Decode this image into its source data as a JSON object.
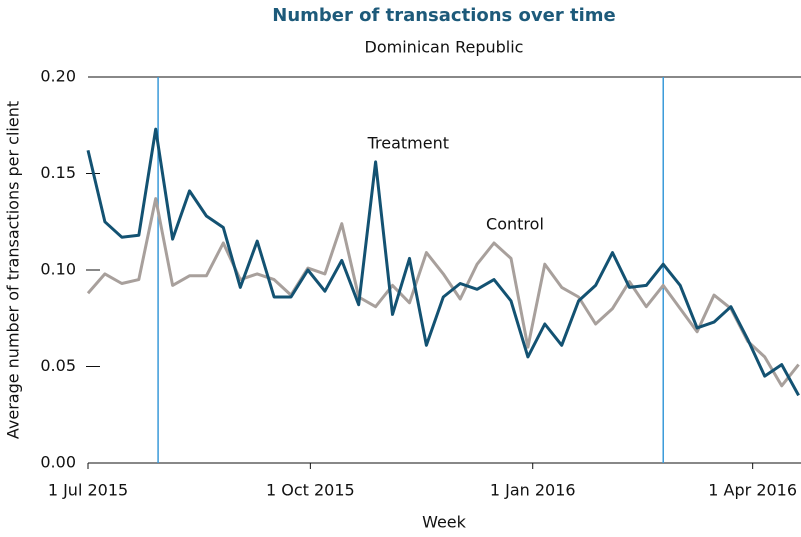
{
  "chart_data": {
    "type": "line",
    "title": "Number of transactions over time",
    "subtitle": "Dominican Republic",
    "x_label": "Week",
    "y_label": "Average number of transactions per client",
    "x": [
      "2015-07-01",
      "2015-07-08",
      "2015-07-15",
      "2015-07-22",
      "2015-07-29",
      "2015-08-05",
      "2015-08-12",
      "2015-08-19",
      "2015-08-26",
      "2015-09-02",
      "2015-09-09",
      "2015-09-16",
      "2015-09-23",
      "2015-09-30",
      "2015-10-07",
      "2015-10-14",
      "2015-10-21",
      "2015-10-28",
      "2015-11-04",
      "2015-11-11",
      "2015-11-18",
      "2015-11-25",
      "2015-12-02",
      "2015-12-09",
      "2015-12-16",
      "2015-12-23",
      "2015-12-30",
      "2016-01-06",
      "2016-01-13",
      "2016-01-20",
      "2016-01-27",
      "2016-02-03",
      "2016-02-10",
      "2016-02-17",
      "2016-02-24",
      "2016-03-02",
      "2016-03-09",
      "2016-03-16",
      "2016-03-23",
      "2016-03-30",
      "2016-04-06",
      "2016-04-13",
      "2016-04-20"
    ],
    "series": [
      {
        "name": "Control",
        "color": "#a8a09c",
        "values": [
          0.088,
          0.098,
          0.093,
          0.095,
          0.137,
          0.092,
          0.097,
          0.097,
          0.114,
          0.095,
          0.098,
          0.095,
          0.087,
          0.101,
          0.098,
          0.124,
          0.086,
          0.081,
          0.092,
          0.083,
          0.109,
          0.098,
          0.085,
          0.103,
          0.114,
          0.106,
          0.06,
          0.103,
          0.091,
          0.086,
          0.072,
          0.08,
          0.094,
          0.081,
          0.092,
          0.08,
          0.068,
          0.087,
          0.08,
          0.063,
          0.055,
          0.04,
          0.051
        ]
      },
      {
        "name": "Treatment",
        "color": "#135272",
        "values": [
          0.162,
          0.125,
          0.117,
          0.118,
          0.173,
          0.116,
          0.141,
          0.128,
          0.122,
          0.091,
          0.115,
          0.086,
          0.086,
          0.1,
          0.089,
          0.105,
          0.082,
          0.156,
          0.077,
          0.106,
          0.061,
          0.086,
          0.093,
          0.09,
          0.095,
          0.084,
          0.055,
          0.072,
          0.061,
          0.084,
          0.092,
          0.109,
          0.091,
          0.092,
          0.103,
          0.092,
          0.07,
          0.073,
          0.081,
          0.064,
          0.045,
          0.051,
          0.035
        ]
      }
    ],
    "vlines": [
      "2015-07-30",
      "2016-02-24"
    ],
    "vline_color": "#3a9ad9",
    "xlim": [
      "2015-07-01",
      "2016-04-21"
    ],
    "xticks": [
      {
        "value": "2015-07-01",
        "label": "1 Jul 2015"
      },
      {
        "value": "2015-10-01",
        "label": "1 Oct 2015"
      },
      {
        "value": "2016-01-01",
        "label": "1 Jan 2016"
      },
      {
        "value": "2016-04-01",
        "label": "1 Apr 2016"
      }
    ],
    "ylim": [
      0,
      0.2
    ],
    "yticks": [
      {
        "value": 0,
        "label": "0.00"
      },
      {
        "value": 0.05,
        "label": "0.05"
      },
      {
        "value": 0.1,
        "label": "0.10"
      },
      {
        "value": 0.15,
        "label": "0.15"
      },
      {
        "value": 0.2,
        "label": "0.20"
      }
    ]
  }
}
